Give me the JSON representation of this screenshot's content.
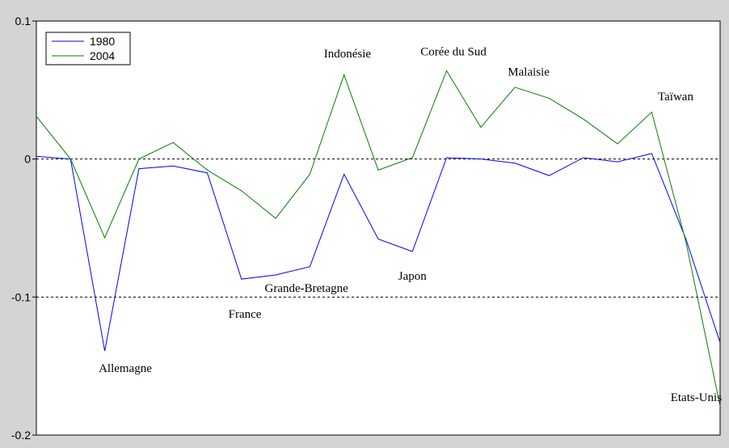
{
  "chart_data": {
    "type": "line",
    "ylim": [
      -0.2,
      0.1
    ],
    "yticks": [
      {
        "value": 0.1,
        "label": "0.1"
      },
      {
        "value": 0,
        "label": "0"
      },
      {
        "value": -0.1,
        "label": "-0.1"
      },
      {
        "value": -0.2,
        "label": "-0.2"
      }
    ],
    "reference_lines": [
      0,
      -0.1
    ],
    "grid": false,
    "legend_position": "top-left",
    "x": [
      1,
      2,
      3,
      4,
      5,
      6,
      7,
      8,
      9,
      10,
      11,
      12,
      13,
      14,
      15,
      16,
      17,
      18,
      19,
      20,
      21
    ],
    "series": [
      {
        "name": "1980",
        "color": "#0000ff",
        "values": [
          0.002,
          0.0,
          -0.139,
          -0.007,
          -0.005,
          -0.01,
          -0.087,
          -0.084,
          -0.078,
          -0.011,
          -0.058,
          -0.067,
          0.001,
          0.0,
          -0.003,
          -0.012,
          0.001,
          -0.002,
          0.004,
          -0.058,
          -0.133
        ]
      },
      {
        "name": "2004",
        "color": "#008000",
        "values": [
          0.031,
          0.0,
          -0.057,
          0.0,
          0.012,
          -0.008,
          -0.023,
          -0.043,
          -0.011,
          0.061,
          -0.008,
          0.001,
          0.064,
          0.023,
          0.052,
          0.044,
          0.029,
          0.011,
          0.034,
          -0.06,
          -0.179
        ]
      }
    ],
    "annotations": [
      {
        "text": "Allemagne",
        "x": 3.6,
        "y": -0.1515
      },
      {
        "text": "France",
        "x": 7.1,
        "y": -0.112
      },
      {
        "text": "Grande-Bretagne",
        "x": 8.9,
        "y": -0.0935
      },
      {
        "text": "Indonésie",
        "x": 10.1,
        "y": 0.0765
      },
      {
        "text": "Japon",
        "x": 12.0,
        "y": -0.0845
      },
      {
        "text": "Corée du Sud",
        "x": 13.2,
        "y": 0.078
      },
      {
        "text": "Malaisie",
        "x": 15.4,
        "y": 0.0635
      },
      {
        "text": "Taïwan",
        "x": 19.7,
        "y": 0.0455
      },
      {
        "text": "Etats-Unis",
        "x": 20.3,
        "y": -0.1725
      }
    ]
  }
}
